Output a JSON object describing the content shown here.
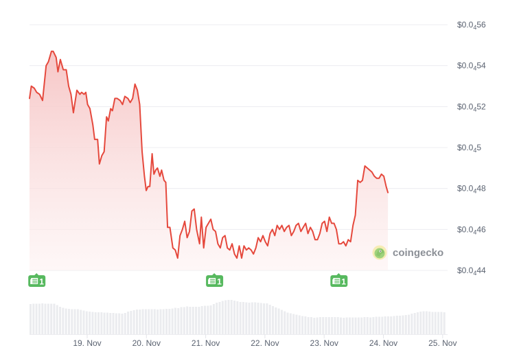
{
  "chart_data": {
    "type": "line",
    "title": "",
    "xlabel": "",
    "ylabel": "",
    "currency": "USD",
    "x_ticks": [
      "19. Nov",
      "20. Nov",
      "21. Nov",
      "22. Nov",
      "23. Nov",
      "24. Nov",
      "25. Nov"
    ],
    "y_ticks": [
      {
        "prefix": "$0.0",
        "sub": "4",
        "digits": "56",
        "value": 5.6e-06
      },
      {
        "prefix": "$0.0",
        "sub": "4",
        "digits": "54",
        "value": 5.4e-06
      },
      {
        "prefix": "$0.0",
        "sub": "4",
        "digits": "52",
        "value": 5.2e-06
      },
      {
        "prefix": "$0.0",
        "sub": "4",
        "digits": "5",
        "value": 5e-06
      },
      {
        "prefix": "$0.0",
        "sub": "4",
        "digits": "48",
        "value": 4.8e-06
      },
      {
        "prefix": "$0.0",
        "sub": "4",
        "digits": "46",
        "value": 4.6e-06
      },
      {
        "prefix": "$0.0",
        "sub": "4",
        "digits": "44",
        "value": 4.4e-06
      }
    ],
    "ylim": [
      4.4e-06,
      5.6e-06
    ],
    "x_range_days": [
      "18. Nov (approx 01:00)",
      "25. Nov (approx 01:00)"
    ],
    "grid": true,
    "legend": null,
    "series": [
      {
        "name": "Price",
        "color": "#e5483c",
        "fill_top": "#f6c9c9",
        "fill_bottom": "#fdf3f3",
        "points_day_value": [
          [
            0.0,
            5.24
          ],
          [
            0.03,
            5.3
          ],
          [
            0.08,
            5.29
          ],
          [
            0.12,
            5.27
          ],
          [
            0.17,
            5.26
          ],
          [
            0.22,
            5.23
          ],
          [
            0.28,
            5.4
          ],
          [
            0.32,
            5.42
          ],
          [
            0.37,
            5.47
          ],
          [
            0.4,
            5.47
          ],
          [
            0.45,
            5.44
          ],
          [
            0.48,
            5.37
          ],
          [
            0.52,
            5.43
          ],
          [
            0.57,
            5.38
          ],
          [
            0.62,
            5.38
          ],
          [
            0.66,
            5.3
          ],
          [
            0.7,
            5.26
          ],
          [
            0.74,
            5.17
          ],
          [
            0.8,
            5.28
          ],
          [
            0.85,
            5.26
          ],
          [
            0.88,
            5.27
          ],
          [
            0.92,
            5.26
          ],
          [
            0.95,
            5.27
          ],
          [
            0.98,
            5.21
          ],
          [
            1.02,
            5.19
          ],
          [
            1.07,
            5.11
          ],
          [
            1.1,
            5.04
          ],
          [
            1.15,
            5.04
          ],
          [
            1.18,
            4.92
          ],
          [
            1.22,
            4.96
          ],
          [
            1.26,
            4.98
          ],
          [
            1.3,
            5.15
          ],
          [
            1.33,
            5.13
          ],
          [
            1.37,
            5.19
          ],
          [
            1.4,
            5.18
          ],
          [
            1.44,
            5.24
          ],
          [
            1.48,
            5.24
          ],
          [
            1.53,
            5.23
          ],
          [
            1.57,
            5.21
          ],
          [
            1.61,
            5.25
          ],
          [
            1.66,
            5.24
          ],
          [
            1.7,
            5.22
          ],
          [
            1.74,
            5.24
          ],
          [
            1.78,
            5.31
          ],
          [
            1.82,
            5.28
          ],
          [
            1.86,
            5.21
          ],
          [
            1.9,
            4.98
          ],
          [
            1.94,
            4.86
          ],
          [
            1.97,
            4.79
          ],
          [
            2.0,
            4.81
          ],
          [
            2.03,
            4.81
          ],
          [
            2.07,
            4.97
          ],
          [
            2.1,
            4.87
          ],
          [
            2.13,
            4.89
          ],
          [
            2.16,
            4.9
          ],
          [
            2.2,
            4.86
          ],
          [
            2.23,
            4.89
          ],
          [
            2.27,
            4.84
          ],
          [
            2.3,
            4.83
          ],
          [
            2.33,
            4.61
          ],
          [
            2.37,
            4.61
          ],
          [
            2.42,
            4.51
          ],
          [
            2.46,
            4.5
          ],
          [
            2.5,
            4.46
          ],
          [
            2.54,
            4.57
          ],
          [
            2.58,
            4.6
          ],
          [
            2.62,
            4.64
          ],
          [
            2.66,
            4.56
          ],
          [
            2.7,
            4.59
          ],
          [
            2.74,
            4.69
          ],
          [
            2.78,
            4.7
          ],
          [
            2.82,
            4.6
          ],
          [
            2.87,
            4.53
          ],
          [
            2.9,
            4.66
          ],
          [
            2.94,
            4.51
          ],
          [
            2.98,
            4.61
          ],
          [
            3.02,
            4.63
          ],
          [
            3.06,
            4.65
          ],
          [
            3.1,
            4.6
          ],
          [
            3.14,
            4.59
          ],
          [
            3.18,
            4.53
          ],
          [
            3.22,
            4.51
          ],
          [
            3.26,
            4.56
          ],
          [
            3.3,
            4.57
          ],
          [
            3.34,
            4.51
          ],
          [
            3.38,
            4.5
          ],
          [
            3.42,
            4.53
          ],
          [
            3.46,
            4.48
          ],
          [
            3.5,
            4.46
          ],
          [
            3.54,
            4.52
          ],
          [
            3.58,
            4.46
          ],
          [
            3.62,
            4.52
          ],
          [
            3.66,
            4.5
          ],
          [
            3.7,
            4.51
          ],
          [
            3.74,
            4.5
          ],
          [
            3.78,
            4.48
          ],
          [
            3.82,
            4.51
          ],
          [
            3.86,
            4.56
          ],
          [
            3.9,
            4.54
          ],
          [
            3.94,
            4.57
          ],
          [
            3.98,
            4.54
          ],
          [
            4.02,
            4.52
          ],
          [
            4.06,
            4.58
          ],
          [
            4.1,
            4.6
          ],
          [
            4.14,
            4.57
          ],
          [
            4.18,
            4.62
          ],
          [
            4.22,
            4.6
          ],
          [
            4.26,
            4.62
          ],
          [
            4.3,
            4.59
          ],
          [
            4.34,
            4.61
          ],
          [
            4.38,
            4.62
          ],
          [
            4.42,
            4.57
          ],
          [
            4.46,
            4.59
          ],
          [
            4.5,
            4.62
          ],
          [
            4.54,
            4.63
          ],
          [
            4.58,
            4.59
          ],
          [
            4.62,
            4.61
          ],
          [
            4.66,
            4.63
          ],
          [
            4.7,
            4.58
          ],
          [
            4.74,
            4.61
          ],
          [
            4.78,
            4.59
          ],
          [
            4.82,
            4.55
          ],
          [
            4.86,
            4.55
          ],
          [
            4.9,
            4.58
          ],
          [
            4.94,
            4.63
          ],
          [
            4.98,
            4.64
          ],
          [
            5.02,
            4.59
          ],
          [
            5.06,
            4.66
          ],
          [
            5.1,
            4.63
          ],
          [
            5.14,
            4.63
          ],
          [
            5.18,
            4.6
          ],
          [
            5.22,
            4.53
          ],
          [
            5.26,
            4.53
          ],
          [
            5.3,
            4.54
          ],
          [
            5.34,
            4.52
          ],
          [
            5.38,
            4.55
          ],
          [
            5.42,
            4.54
          ],
          [
            5.46,
            4.62
          ],
          [
            5.5,
            4.67
          ],
          [
            5.54,
            4.84
          ],
          [
            5.58,
            4.83
          ],
          [
            5.62,
            4.84
          ],
          [
            5.66,
            4.91
          ],
          [
            5.7,
            4.9
          ],
          [
            5.74,
            4.89
          ],
          [
            5.78,
            4.88
          ],
          [
            5.82,
            4.86
          ],
          [
            5.86,
            4.85
          ],
          [
            5.9,
            4.85
          ],
          [
            5.94,
            4.87
          ],
          [
            5.98,
            4.86
          ],
          [
            6.02,
            4.81
          ],
          [
            6.05,
            4.78
          ]
        ]
      }
    ],
    "volume_series": {
      "name": "Volume",
      "color": "#ebecef",
      "relative_heights": [
        0.88,
        0.89,
        0.89,
        0.89,
        0.9,
        0.89,
        0.89,
        0.89,
        0.89,
        0.85,
        0.8,
        0.77,
        0.75,
        0.74,
        0.73,
        0.73,
        0.73,
        0.71,
        0.69,
        0.67,
        0.66,
        0.65,
        0.64,
        0.64,
        0.64,
        0.63,
        0.63,
        0.62,
        0.62,
        0.61,
        0.61,
        0.6,
        0.62,
        0.66,
        0.68,
        0.7,
        0.72,
        0.72,
        0.73,
        0.73,
        0.73,
        0.73,
        0.73,
        0.72,
        0.73,
        0.73,
        0.74,
        0.74,
        0.75,
        0.77,
        0.76,
        0.79,
        0.79,
        0.81,
        0.8,
        0.8,
        0.8,
        0.8,
        0.82,
        0.83,
        0.83,
        0.84,
        0.88,
        0.92,
        0.94,
        0.97,
        0.99,
        1.0,
        1.0,
        0.98,
        0.96,
        0.94,
        0.94,
        0.93,
        0.92,
        0.93,
        0.93,
        0.92,
        0.91,
        0.9,
        0.9,
        0.86,
        0.82,
        0.78,
        0.75,
        0.71,
        0.67,
        0.63,
        0.61,
        0.59,
        0.57,
        0.55,
        0.53,
        0.52,
        0.5,
        0.5,
        0.48,
        0.49,
        0.5,
        0.5,
        0.5,
        0.5,
        0.5,
        0.5,
        0.5,
        0.49,
        0.48,
        0.49,
        0.49,
        0.49,
        0.49,
        0.49,
        0.49,
        0.5,
        0.5,
        0.49,
        0.5,
        0.51,
        0.51,
        0.51,
        0.52,
        0.52,
        0.52,
        0.53,
        0.54,
        0.54,
        0.55,
        0.56,
        0.57,
        0.6,
        0.62,
        0.64,
        0.66,
        0.67,
        0.67,
        0.66,
        0.65,
        0.65,
        0.65,
        0.65,
        0.64
      ]
    },
    "news_markers": [
      {
        "day": 0.13,
        "count": "1"
      },
      {
        "day": 3.13,
        "count": "1"
      },
      {
        "day": 5.23,
        "count": "1"
      }
    ]
  },
  "watermark": {
    "text": "coingecko"
  },
  "colors": {
    "line": "#e5483c",
    "news_badge": "#57b95f",
    "axis_text": "#5a6270",
    "grid": "#ececf0",
    "volume": "#ebecef"
  }
}
